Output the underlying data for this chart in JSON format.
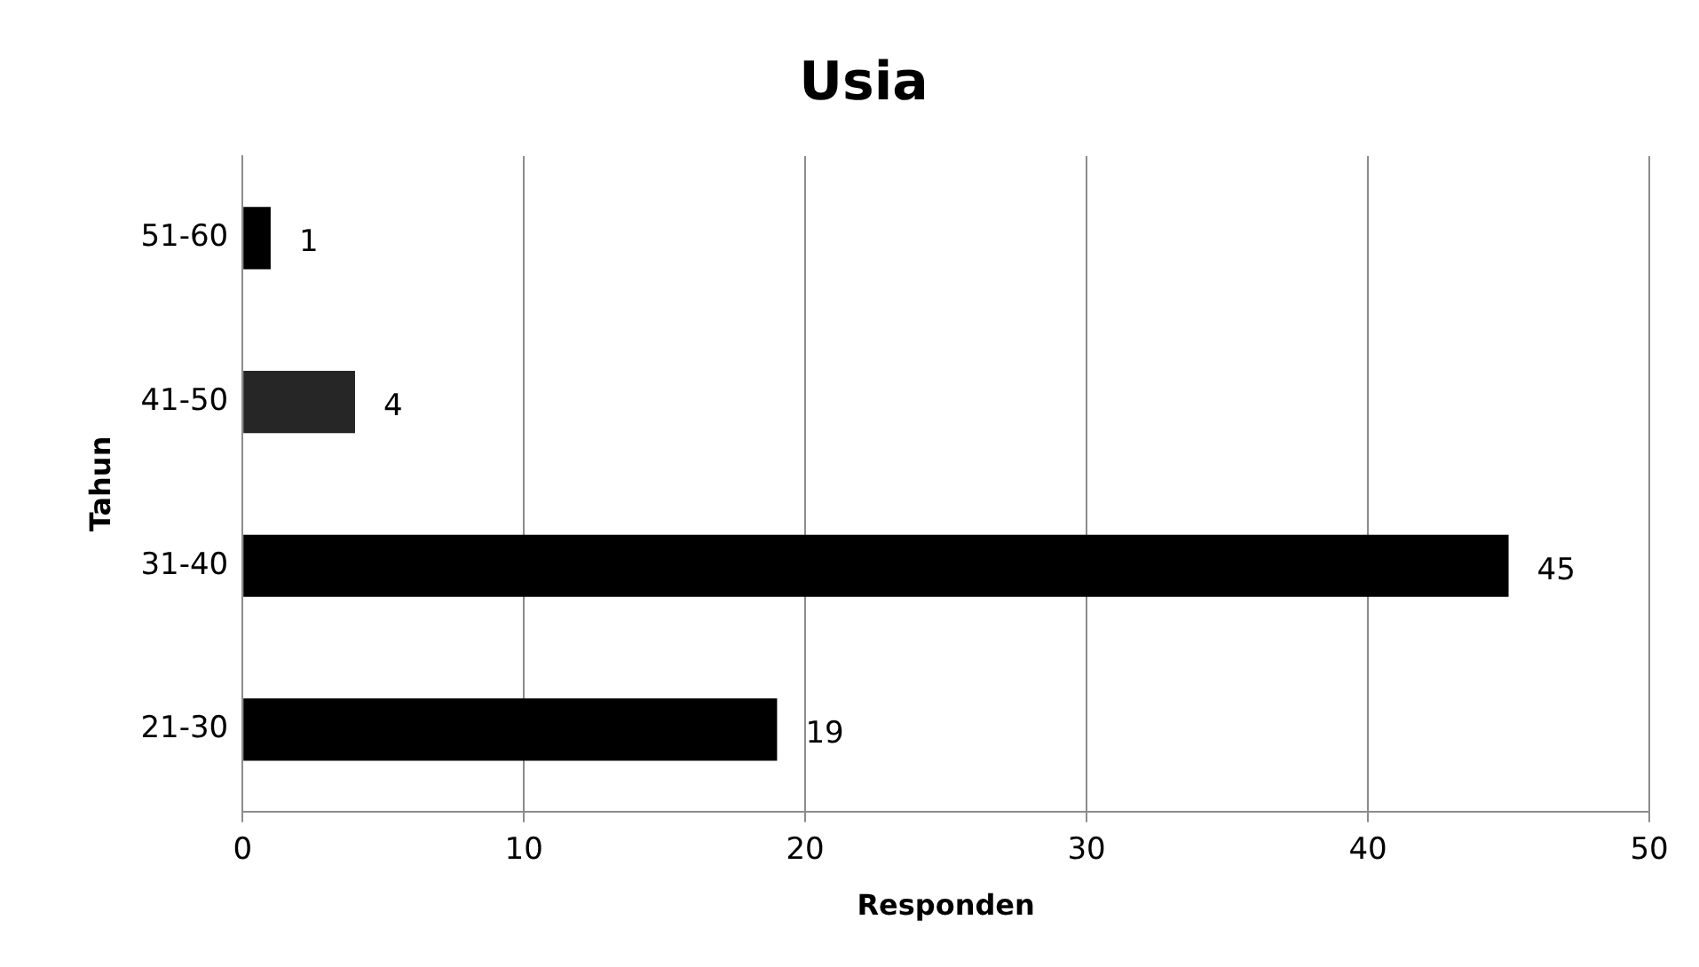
{
  "chart_data": {
    "type": "bar",
    "orientation": "horizontal",
    "title": "Usia",
    "xlabel": "Responden",
    "ylabel": "Tahun",
    "categories": [
      "51-60",
      "41-50",
      "31-40",
      "21-30"
    ],
    "values": [
      1,
      4,
      45,
      19
    ],
    "colors": [
      "#000000",
      "#262626",
      "#000000",
      "#000000"
    ],
    "xlim": [
      0,
      50
    ],
    "xticks": [
      0,
      10,
      20,
      30,
      40,
      50
    ],
    "grid": "x",
    "data_labels": true,
    "legend": false
  }
}
